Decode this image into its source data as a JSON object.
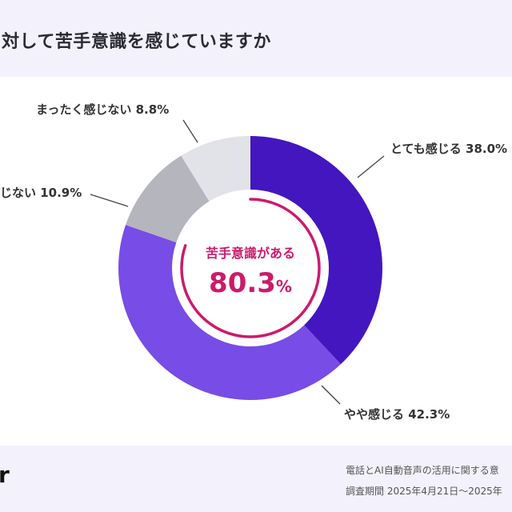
{
  "header": {
    "title": "対して苦手意識を感じていますか"
  },
  "chart_data": {
    "type": "pie",
    "donut": true,
    "title": "",
    "slices": [
      {
        "label": "とても感じる",
        "value": 38.0,
        "color": "#4416bf"
      },
      {
        "label": "やや感じる",
        "value": 42.3,
        "color": "#784ce6"
      },
      {
        "label": "じない",
        "value": 10.9,
        "color": "#b5b5bd"
      },
      {
        "label": "まったく感じない",
        "value": 8.8,
        "color": "#e2e2e9"
      }
    ],
    "display_labels": [
      "とても感じる 38.0%",
      "やや感じる 42.3%",
      "じない 10.9%",
      "まったく感じない 8.8%"
    ],
    "center": {
      "caption": "苦手意識がある",
      "value": "80.3",
      "unit": "%",
      "ring_percent": 80.3,
      "color": "#cc1a6c"
    }
  },
  "footer": {
    "logo_text": "r",
    "source_line1": "電話とAI自動音声の活用に関する意",
    "source_line2": "調査期間 2025年4月21日〜2025年"
  }
}
